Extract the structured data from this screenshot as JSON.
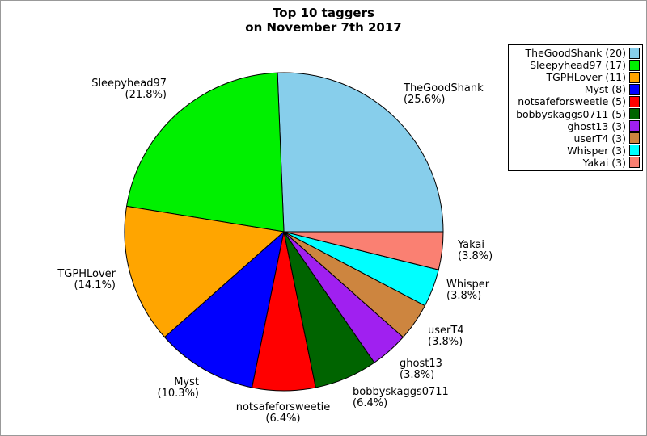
{
  "title_display": "Top 10 taggers\non November 7th 2017",
  "chart_data": {
    "type": "pie",
    "title": "Top 10 taggers on November 7th 2017",
    "labels": [
      "TheGoodShank",
      "Sleepyhead97",
      "TGPHLover",
      "Myst",
      "notsafeforsweetie",
      "bobbyskaggs0711",
      "ghost13",
      "userT4",
      "Whisper",
      "Yakai"
    ],
    "values": [
      20,
      17,
      11,
      8,
      5,
      5,
      3,
      3,
      3,
      3
    ],
    "percent_labels": [
      "(25.6%)",
      "(21.8%)",
      "(14.1%)",
      "(10.3%)",
      "(6.4%)",
      "(6.4%)",
      "(3.8%)",
      "(3.8%)",
      "(3.8%)",
      "(3.8%)"
    ],
    "colors": [
      "#87CEEB",
      "#00F000",
      "#FFA500",
      "#0000FF",
      "#FF0000",
      "#006400",
      "#A020F0",
      "#CD853F",
      "#00FFFF",
      "#FA8072"
    ],
    "legend_entries": [
      "TheGoodShank (20)",
      "Sleepyhead97 (17)",
      "TGPHLover (11)",
      "Myst (8)",
      "notsafeforsweetie (5)",
      "bobbyskaggs0711 (5)",
      "ghost13 (3)",
      "userT4 (3)",
      "Whisper (3)",
      "Yakai (3)"
    ],
    "legend_position": "top-right",
    "start_angle_deg": 0,
    "direction": "counterclockwise",
    "edge_color": "#000000",
    "background_color": "#ffffff"
  }
}
